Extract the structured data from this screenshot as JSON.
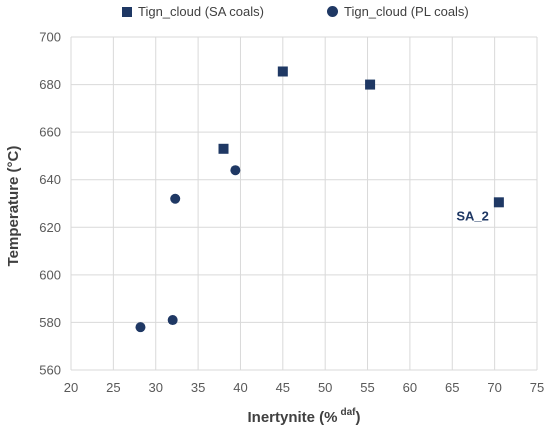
{
  "chart_data": {
    "type": "scatter",
    "xlabel": "Inertynite (%",
    "xlabel_superscript": "daf",
    "xlabel_close": ")",
    "ylabel": "Temperature (°C)",
    "xlim": [
      20,
      75
    ],
    "ylim": [
      560,
      700
    ],
    "xticks": [
      20,
      25,
      30,
      35,
      40,
      45,
      50,
      55,
      60,
      65,
      70,
      75
    ],
    "yticks": [
      560,
      580,
      600,
      620,
      640,
      660,
      680,
      700
    ],
    "grid": true,
    "legend_position": "top",
    "marker_color": "#1f3864",
    "grid_color": "#d9d9d9",
    "series": [
      {
        "name": "Tign_cloud (SA coals)",
        "marker": "square",
        "points": [
          {
            "x": 38.0,
            "y": 653
          },
          {
            "x": 45.0,
            "y": 685.5
          },
          {
            "x": 55.3,
            "y": 680
          },
          {
            "x": 70.5,
            "y": 630.5
          }
        ]
      },
      {
        "name": "Tign_cloud (PL coals)",
        "marker": "circle",
        "points": [
          {
            "x": 28.2,
            "y": 578
          },
          {
            "x": 32.0,
            "y": 581
          },
          {
            "x": 32.3,
            "y": 632
          },
          {
            "x": 39.4,
            "y": 644
          }
        ]
      }
    ],
    "annotations": [
      {
        "text": "SA_2",
        "x": 70.5,
        "y": 630.5
      }
    ]
  }
}
